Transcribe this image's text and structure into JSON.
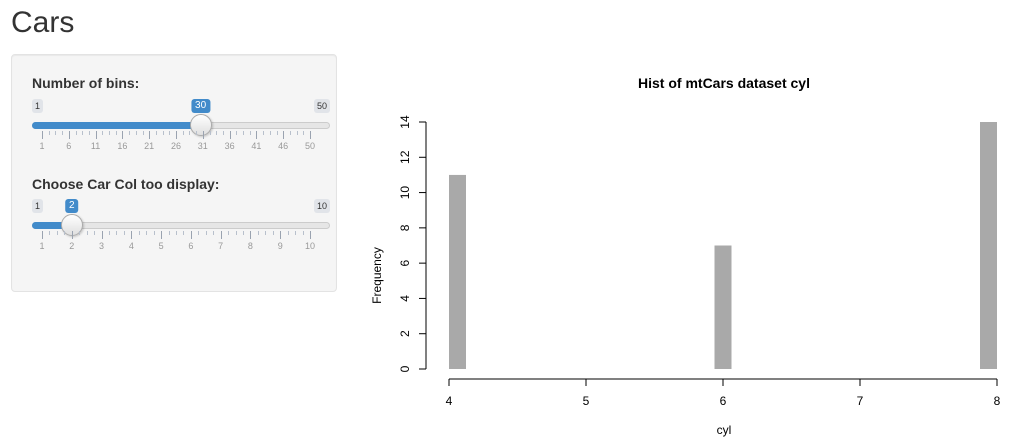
{
  "app": {
    "title": "Cars"
  },
  "sidebar": {
    "bins_slider": {
      "label": "Number of bins:",
      "min": 1,
      "max": 50,
      "value": 30,
      "min_text": "1",
      "max_text": "50",
      "value_text": "30",
      "ticks": [
        "1",
        "6",
        "11",
        "16",
        "21",
        "26",
        "31",
        "36",
        "41",
        "46",
        "50"
      ]
    },
    "col_slider": {
      "label": "Choose Car Col too display:",
      "min": 1,
      "max": 10,
      "value": 2,
      "min_text": "1",
      "max_text": "10",
      "value_text": "2",
      "ticks": [
        "1",
        "2",
        "3",
        "4",
        "5",
        "6",
        "7",
        "8",
        "9",
        "10"
      ]
    },
    "colors": {
      "accent": "#428bca"
    }
  },
  "chart_data": {
    "type": "bar",
    "title": "Hist of mtCars dataset cyl",
    "xlabel": "cyl",
    "ylabel": "Frequency",
    "bars": [
      {
        "x": 4,
        "value": 11
      },
      {
        "x": 6,
        "value": 7
      },
      {
        "x": 8,
        "value": 14
      }
    ],
    "xlim": [
      4,
      8
    ],
    "ylim": [
      0,
      14
    ],
    "xticks": [
      "4",
      "5",
      "6",
      "7",
      "8"
    ],
    "yticks": [
      "0",
      "2",
      "4",
      "6",
      "8",
      "10",
      "12",
      "14"
    ],
    "bar_color": "#a9a9a9",
    "grid": false
  }
}
